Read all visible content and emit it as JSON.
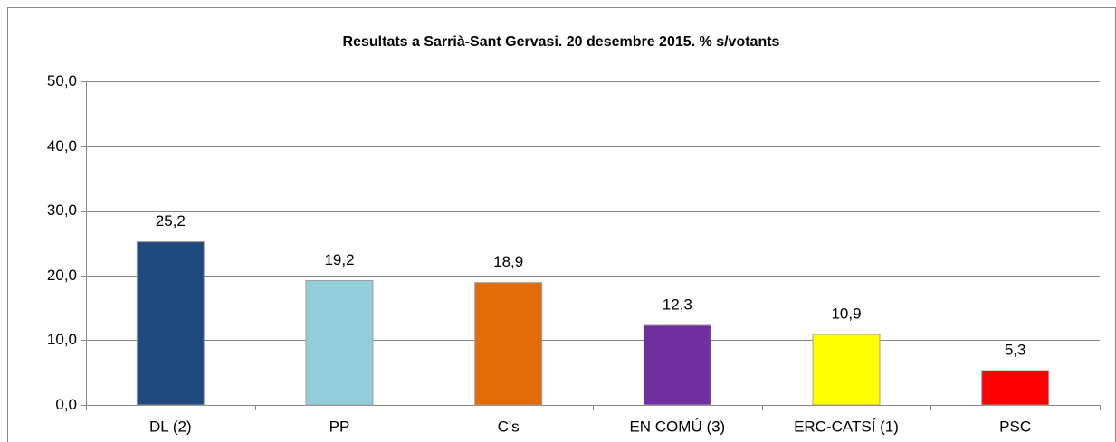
{
  "chart_data": {
    "type": "bar",
    "title": "Resultats a Sarrià-Sant Gervasi. 20 desembre 2015. % s/votants",
    "categories": [
      "DL (2)",
      "PP",
      "C's",
      "EN COMÚ (3)",
      "ERC-CATSÍ (1)",
      "PSC"
    ],
    "values": [
      25.2,
      19.2,
      18.9,
      12.3,
      10.9,
      5.3
    ],
    "value_labels": [
      "25,2",
      "19,2",
      "18,9",
      "12,3",
      "10,9",
      "5,3"
    ],
    "colors": [
      "#1f497d",
      "#92cddc",
      "#e36c09",
      "#7030a0",
      "#ffff00",
      "#ff0000"
    ],
    "ylim": [
      0,
      50
    ],
    "yticks": [
      {
        "value": 0,
        "label": "0,0"
      },
      {
        "value": 10,
        "label": "10,0"
      },
      {
        "value": 20,
        "label": "20,0"
      },
      {
        "value": 30,
        "label": "30,0"
      },
      {
        "value": 40,
        "label": "40,0"
      },
      {
        "value": 50,
        "label": "50,0"
      }
    ],
    "grid": true
  }
}
